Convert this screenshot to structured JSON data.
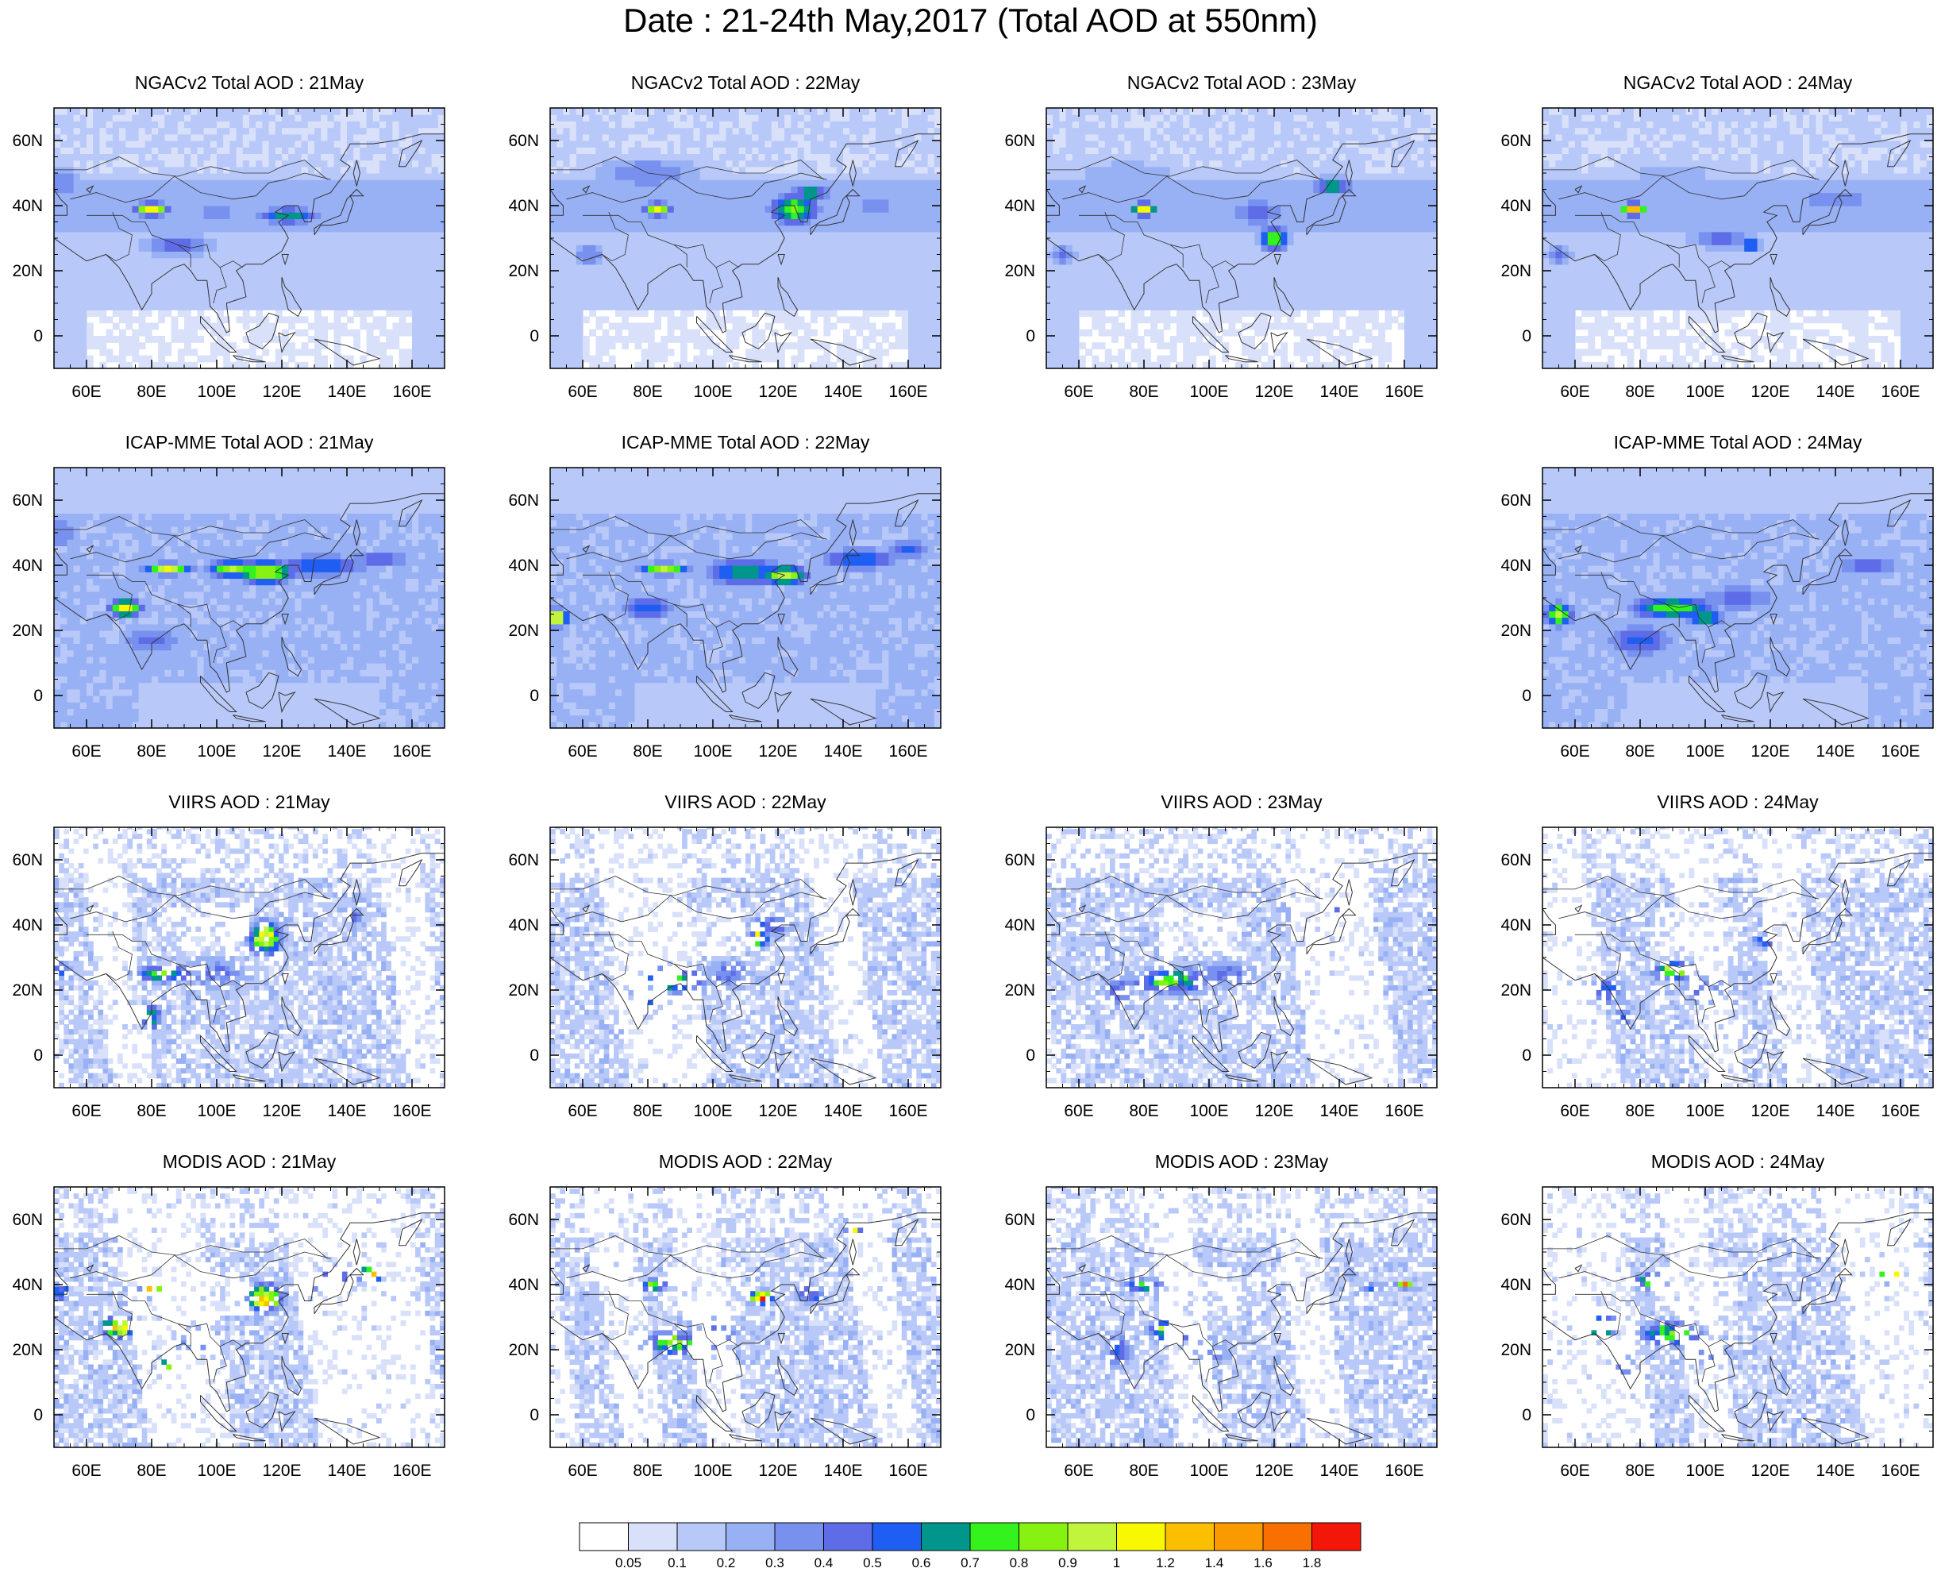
{
  "title": "Date : 21-24th May,2017 (Total AOD at 550nm)",
  "panels": [
    {
      "id": "ngac-21",
      "title": "NGACv2 Total AOD : 21May",
      "product": "NGACv2",
      "day": "21May",
      "blobs": [
        [
          80,
          39,
          5,
          2,
          1.2
        ],
        [
          88,
          28,
          15,
          4,
          0.45
        ],
        [
          122,
          37,
          12,
          3,
          0.65
        ],
        [
          100,
          38,
          8,
          3,
          0.45
        ],
        [
          52,
          47,
          8,
          6,
          0.4
        ],
        [
          105,
          42,
          30,
          5,
          0.3
        ]
      ]
    },
    {
      "id": "ngac-22",
      "title": "NGACv2 Total AOD : 22May",
      "product": "NGACv2",
      "day": "22May",
      "blobs": [
        [
          83,
          39,
          4,
          2,
          1.1
        ],
        [
          125,
          39,
          8,
          5,
          0.85
        ],
        [
          130,
          44,
          6,
          2,
          0.8
        ],
        [
          80,
          50,
          20,
          6,
          0.4
        ],
        [
          62,
          25,
          6,
          4,
          0.4
        ],
        [
          150,
          40,
          10,
          4,
          0.35
        ]
      ]
    },
    {
      "id": "ngac-23",
      "title": "NGACv2 Total AOD : 23May",
      "product": "NGACv2",
      "day": "23May",
      "blobs": [
        [
          80,
          39,
          4,
          2,
          1.2
        ],
        [
          120,
          30,
          5,
          4,
          0.8
        ],
        [
          138,
          46,
          6,
          3,
          0.7
        ],
        [
          115,
          38,
          12,
          5,
          0.45
        ],
        [
          75,
          50,
          20,
          5,
          0.3
        ],
        [
          55,
          25,
          5,
          4,
          0.4
        ]
      ]
    },
    {
      "id": "ngac-24",
      "title": "NGACv2 Total AOD : 24May",
      "product": "NGACv2",
      "day": "24May",
      "blobs": [
        [
          78,
          39,
          4,
          2,
          1.4
        ],
        [
          114,
          28,
          3,
          2,
          0.8
        ],
        [
          105,
          30,
          12,
          4,
          0.45
        ],
        [
          140,
          42,
          15,
          4,
          0.4
        ],
        [
          55,
          25,
          5,
          4,
          0.4
        ],
        [
          90,
          50,
          25,
          5,
          0.25
        ]
      ]
    },
    {
      "id": "icap-21",
      "title": "ICAP-MME Total AOD : 21May",
      "product": "ICAP-MME",
      "day": "21May",
      "blobs": [
        [
          72,
          27,
          5,
          3,
          1.1
        ],
        [
          85,
          39,
          8,
          2,
          1.0
        ],
        [
          115,
          38,
          10,
          4,
          0.95
        ],
        [
          105,
          39,
          8,
          3,
          0.9
        ],
        [
          132,
          40,
          18,
          4,
          0.6
        ],
        [
          150,
          42,
          10,
          3,
          0.55
        ],
        [
          80,
          17,
          12,
          6,
          0.45
        ],
        [
          52,
          50,
          8,
          6,
          0.4
        ]
      ]
    },
    {
      "id": "icap-22",
      "title": "ICAP-MME Total AOD : 22May",
      "product": "ICAP-MME",
      "day": "22May",
      "blobs": [
        [
          52,
          24,
          4,
          3,
          1.1
        ],
        [
          85,
          39,
          8,
          2,
          0.95
        ],
        [
          110,
          38,
          15,
          5,
          0.65
        ],
        [
          122,
          37,
          8,
          3,
          1.0
        ],
        [
          80,
          27,
          10,
          4,
          0.6
        ],
        [
          145,
          42,
          15,
          4,
          0.6
        ],
        [
          160,
          45,
          8,
          3,
          0.55
        ]
      ]
    },
    {
      "id": "icap-23",
      "title": "",
      "product": "",
      "day": "",
      "empty": true,
      "blobs": []
    },
    {
      "id": "icap-24",
      "title": "ICAP-MME Total AOD : 24May",
      "product": "ICAP-MME",
      "day": "24May",
      "blobs": [
        [
          55,
          25,
          5,
          4,
          0.9
        ],
        [
          90,
          27,
          14,
          4,
          0.8
        ],
        [
          100,
          24,
          6,
          3,
          0.8
        ],
        [
          80,
          17,
          12,
          6,
          0.55
        ],
        [
          110,
          30,
          15,
          5,
          0.45
        ],
        [
          150,
          40,
          15,
          4,
          0.45
        ]
      ]
    },
    {
      "id": "viirs-21",
      "title": "VIIRS AOD : 21May",
      "product": "VIIRS",
      "day": "21May",
      "blobs": [
        [
          115,
          36,
          5,
          5,
          1.1
        ],
        [
          84,
          25,
          10,
          3,
          0.7
        ],
        [
          80,
          12,
          3,
          4,
          0.8
        ],
        [
          142,
          43,
          3,
          2,
          0.6
        ],
        [
          100,
          25,
          10,
          6,
          0.4
        ],
        [
          52,
          26,
          4,
          3,
          0.5
        ]
      ]
    },
    {
      "id": "viirs-22",
      "title": "VIIRS AOD : 22May",
      "product": "VIIRS",
      "day": "22May",
      "blobs": [
        [
          88,
          23,
          10,
          4,
          0.8
        ],
        [
          114,
          36,
          3,
          3,
          1.0
        ],
        [
          80,
          18,
          6,
          5,
          0.5
        ],
        [
          105,
          25,
          8,
          5,
          0.45
        ],
        [
          118,
          40,
          8,
          3,
          0.5
        ]
      ]
    },
    {
      "id": "viirs-23",
      "title": "VIIRS AOD : 23May",
      "product": "VIIRS",
      "day": "23May",
      "blobs": [
        [
          88,
          23,
          12,
          4,
          0.8
        ],
        [
          72,
          20,
          5,
          5,
          0.45
        ],
        [
          105,
          25,
          10,
          5,
          0.45
        ],
        [
          140,
          45,
          3,
          2,
          0.5
        ]
      ]
    },
    {
      "id": "viirs-24",
      "title": "VIIRS AOD : 24May",
      "product": "VIIRS",
      "day": "24May",
      "blobs": [
        [
          90,
          26,
          6,
          3,
          0.9
        ],
        [
          70,
          20,
          6,
          5,
          0.5
        ],
        [
          75,
          12,
          3,
          3,
          0.5
        ],
        [
          118,
          35,
          3,
          2,
          0.7
        ],
        [
          100,
          20,
          8,
          5,
          0.4
        ]
      ]
    },
    {
      "id": "modis-21",
      "title": "MODIS AOD : 21May",
      "product": "MODIS",
      "day": "21May",
      "blobs": [
        [
          115,
          36,
          5,
          4,
          1.3
        ],
        [
          80,
          38,
          4,
          2,
          1.2
        ],
        [
          70,
          27,
          5,
          3,
          1.2
        ],
        [
          85,
          15,
          3,
          3,
          0.8
        ],
        [
          135,
          41,
          6,
          3,
          1.1
        ],
        [
          147,
          43,
          3,
          2,
          1.5
        ],
        [
          95,
          23,
          8,
          5,
          0.45
        ],
        [
          52,
          38,
          3,
          3,
          0.6
        ]
      ]
    },
    {
      "id": "modis-22",
      "title": "MODIS AOD : 22May",
      "product": "MODIS",
      "day": "22May",
      "blobs": [
        [
          88,
          22,
          10,
          4,
          0.8
        ],
        [
          82,
          40,
          4,
          2,
          0.8
        ],
        [
          115,
          36,
          3,
          2,
          1.6
        ],
        [
          130,
          37,
          5,
          3,
          0.6
        ],
        [
          143,
          58,
          2,
          2,
          1.8
        ],
        [
          100,
          25,
          10,
          6,
          0.45
        ]
      ]
    },
    {
      "id": "modis-23",
      "title": "MODIS AOD : 23May",
      "product": "MODIS",
      "day": "23May",
      "blobs": [
        [
          88,
          26,
          6,
          3,
          1.1
        ],
        [
          80,
          40,
          6,
          2,
          0.8
        ],
        [
          72,
          20,
          5,
          6,
          0.5
        ],
        [
          100,
          20,
          8,
          5,
          0.4
        ],
        [
          160,
          40,
          2,
          1,
          1.8
        ],
        [
          150,
          39,
          4,
          2,
          0.5
        ]
      ]
    },
    {
      "id": "modis-24",
      "title": "MODIS AOD : 24May",
      "product": "MODIS",
      "day": "24May",
      "blobs": [
        [
          68,
          27,
          4,
          3,
          1.4
        ],
        [
          90,
          25,
          10,
          4,
          0.8
        ],
        [
          83,
          41,
          5,
          3,
          0.7
        ],
        [
          157,
          43,
          3,
          2,
          1.8
        ],
        [
          100,
          20,
          8,
          5,
          0.45
        ],
        [
          75,
          15,
          4,
          4,
          0.45
        ]
      ]
    }
  ],
  "axes": {
    "lon_range": [
      50,
      170
    ],
    "lat_range": [
      -10,
      70
    ],
    "x_ticks": [
      60,
      80,
      100,
      120,
      140,
      160
    ],
    "y_ticks": [
      0,
      20,
      40,
      60
    ],
    "x_tick_labels": [
      "60E",
      "80E",
      "100E",
      "120E",
      "140E",
      "160E"
    ],
    "y_tick_labels": [
      "0",
      "20N",
      "40N",
      "60N"
    ]
  },
  "colorbar": {
    "levels": [
      0.05,
      0.1,
      0.2,
      0.3,
      0.4,
      0.5,
      0.6,
      0.7,
      0.8,
      0.9,
      1,
      1.2,
      1.4,
      1.6,
      1.8
    ],
    "labels": [
      "0.05",
      "0.1",
      "0.2",
      "0.3",
      "0.4",
      "0.5",
      "0.6",
      "0.7",
      "0.8",
      "0.9",
      "1",
      "1.2",
      "1.4",
      "1.6",
      "1.8"
    ],
    "colors": [
      "#ffffff",
      "#d8e0fa",
      "#b8c8f8",
      "#98b0f4",
      "#7890ee",
      "#5e6ce8",
      "#1f5ef2",
      "#00968c",
      "#33f21e",
      "#87f212",
      "#c0f53c",
      "#f8f800",
      "#fbbf00",
      "#fb9a00",
      "#fa7000",
      "#f5160a"
    ]
  }
}
